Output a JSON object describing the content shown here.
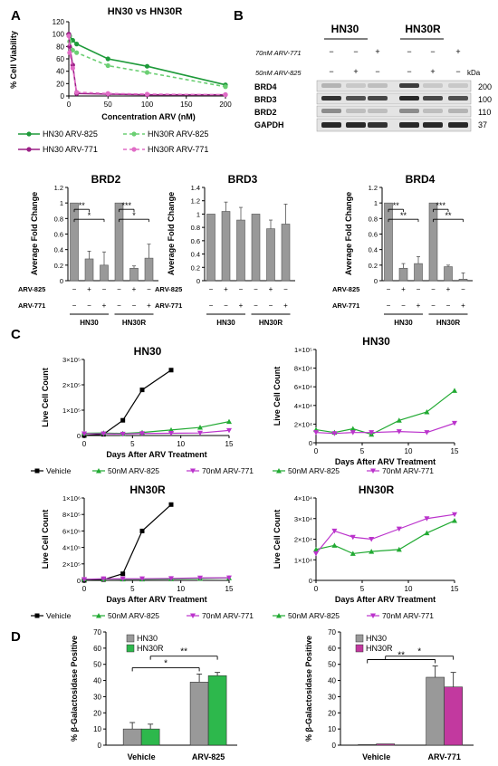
{
  "panels": {
    "A": "A",
    "B": "B",
    "C": "C",
    "D": "D"
  },
  "colors": {
    "hn30_green": "#1e9a3a",
    "hn30r_green": "#6bcf73",
    "hn30_purple": "#9b1f86",
    "hn30r_pink": "#e06cc6",
    "vehicle": "#000000",
    "arv825": "#22aa33",
    "arv771": "#bb33cc",
    "bar_gray": "#999999",
    "bar_green": "#2db84c",
    "bar_magenta": "#c2399f"
  },
  "blot": {
    "hn30": "HN30",
    "hn30r": "HN30R",
    "row771": "70nM ARV-771",
    "row825": "50nM ARV-825",
    "kda": "kDa",
    "signs771": [
      "−",
      "−",
      "+",
      "−",
      "−",
      "+"
    ],
    "signs825": [
      "−",
      "+",
      "−",
      "−",
      "+",
      "−"
    ],
    "bands": [
      {
        "name": "BRD4",
        "kda": "200"
      },
      {
        "name": "BRD3",
        "kda": "100"
      },
      {
        "name": "BRD2",
        "kda": "110"
      },
      {
        "name": "GAPDH",
        "kda": "37"
      }
    ]
  },
  "chart_data": [
    {
      "id": "A-viability",
      "type": "line",
      "title": "HN30 vs HN30R",
      "xlabel": "Concentration ARV (nM)",
      "ylabel": "% Cell Viability",
      "xlim": [
        0,
        200
      ],
      "ylim": [
        0,
        120
      ],
      "xticks": [
        0,
        50,
        100,
        150,
        200
      ],
      "yticks": [
        0,
        20,
        40,
        60,
        80,
        100,
        120
      ],
      "series": [
        {
          "name": "HN30 ARV-825",
          "x": [
            0,
            1,
            5,
            10,
            50,
            100,
            200
          ],
          "y": [
            100,
            97,
            90,
            84,
            60,
            48,
            18
          ]
        },
        {
          "name": "HN30R ARV-825",
          "x": [
            0,
            1,
            5,
            10,
            50,
            100,
            200
          ],
          "y": [
            99,
            88,
            74,
            70,
            49,
            38,
            15
          ]
        },
        {
          "name": "HN30 ARV-771",
          "x": [
            0,
            1,
            5,
            10,
            50,
            100,
            200
          ],
          "y": [
            100,
            80,
            50,
            4,
            3,
            2,
            2
          ]
        },
        {
          "name": "HN30R ARV-771",
          "x": [
            0,
            1,
            5,
            10,
            50,
            100,
            200
          ],
          "y": [
            97,
            70,
            45,
            6,
            4,
            3,
            2
          ]
        }
      ]
    },
    {
      "id": "A-brd2",
      "type": "bar",
      "title": "BRD2",
      "ylabel": "Average Fold Change",
      "ylim": [
        0,
        1.2
      ],
      "yticks": [
        "0",
        "0.2",
        "0.4",
        "0.6",
        "0.8",
        "1",
        "1.2"
      ],
      "values": [
        1,
        0.28,
        0.2,
        1,
        0.16,
        0.29
      ],
      "errors": [
        0,
        0.1,
        0.17,
        0,
        0.03,
        0.18
      ],
      "treat825": [
        "−",
        "+",
        "−",
        "−",
        "+",
        "−"
      ],
      "treat771": [
        "−",
        "−",
        "+",
        "−",
        "−",
        "+"
      ],
      "groups": [
        "HN30",
        "HN30R"
      ],
      "sig": [
        {
          "a": 0,
          "b": 1,
          "label": "**",
          "lvl": 0
        },
        {
          "a": 0,
          "b": 2,
          "label": "*",
          "lvl": 1
        },
        {
          "a": 3,
          "b": 4,
          "label": "***",
          "lvl": 0
        },
        {
          "a": 3,
          "b": 5,
          "label": "*",
          "lvl": 1
        }
      ]
    },
    {
      "id": "A-brd3",
      "type": "bar",
      "title": "BRD3",
      "ylabel": "Average Fold Change",
      "ylim": [
        0,
        1.4
      ],
      "yticks": [
        "0",
        "0.2",
        "0.4",
        "0.6",
        "0.8",
        "1",
        "1.2",
        "1.4"
      ],
      "values": [
        1,
        1.04,
        0.91,
        1,
        0.78,
        0.85
      ],
      "errors": [
        0,
        0.14,
        0.19,
        0,
        0.13,
        0.3
      ],
      "treat825": [
        "−",
        "+",
        "−",
        "−",
        "+",
        "−"
      ],
      "treat771": [
        "−",
        "−",
        "+",
        "−",
        "−",
        "+"
      ],
      "groups": [
        "HN30",
        "HN30R"
      ],
      "sig": []
    },
    {
      "id": "A-brd4",
      "type": "bar",
      "title": "BRD4",
      "ylabel": "Average Fold Change",
      "ylim": [
        0,
        1.2
      ],
      "yticks": [
        "0",
        "0.2",
        "0.4",
        "0.6",
        "0.8",
        "1",
        "1.2"
      ],
      "values": [
        1,
        0.16,
        0.22,
        1,
        0.18,
        0.02
      ],
      "errors": [
        0,
        0.06,
        0.09,
        0,
        0.02,
        0.08
      ],
      "treat825": [
        "−",
        "+",
        "−",
        "−",
        "+",
        "−"
      ],
      "treat771": [
        "−",
        "−",
        "+",
        "−",
        "−",
        "+"
      ],
      "groups": [
        "HN30",
        "HN30R"
      ],
      "sig": [
        {
          "a": 0,
          "b": 1,
          "label": "**",
          "lvl": 0
        },
        {
          "a": 0,
          "b": 2,
          "label": "**",
          "lvl": 1
        },
        {
          "a": 3,
          "b": 4,
          "label": "***",
          "lvl": 0
        },
        {
          "a": 3,
          "b": 5,
          "label": "**",
          "lvl": 1
        }
      ]
    },
    {
      "id": "C-hn30-all",
      "type": "line",
      "title": "HN30",
      "xlabel": "Days After ARV Treatment",
      "ylabel": "Live Cell Count",
      "xlim": [
        0,
        15
      ],
      "ylim": [
        0,
        300000
      ],
      "xticks": [
        "0",
        "5",
        "10",
        "15"
      ],
      "yticks": [
        "0",
        "1×10⁵",
        "2×10⁵",
        "3×10⁵"
      ],
      "series": [
        {
          "name": "Vehicle",
          "x": [
            0,
            2,
            4,
            6,
            9
          ],
          "y": [
            0,
            5000,
            60000,
            180000,
            258000
          ]
        },
        {
          "name": "50nM ARV-825",
          "x": [
            0,
            2,
            4,
            6,
            9,
            12,
            15
          ],
          "y": [
            9000,
            10000,
            8000,
            12000,
            22000,
            32000,
            55000
          ]
        },
        {
          "name": "70nM ARV-771",
          "x": [
            0,
            2,
            4,
            6,
            9,
            12,
            15
          ],
          "y": [
            7000,
            7000,
            6000,
            8000,
            9000,
            10000,
            20000
          ]
        }
      ]
    },
    {
      "id": "C-hn30-arv",
      "type": "line",
      "title": "HN30",
      "xlabel": "Days After ARV Treatment",
      "ylabel": "Live Cell Count",
      "xlim": [
        0,
        15
      ],
      "ylim": [
        0,
        100000
      ],
      "xticks": [
        "0",
        "5",
        "10",
        "15"
      ],
      "yticks": [
        "0",
        "2×10⁴",
        "4×10⁴",
        "6×10⁴",
        "8×10⁴",
        "1×10⁵"
      ],
      "series": [
        {
          "name": "50nM ARV-825",
          "x": [
            0,
            2,
            4,
            6,
            9,
            12,
            15
          ],
          "y": [
            14000,
            11000,
            15000,
            9000,
            24000,
            33000,
            56000
          ]
        },
        {
          "name": "70nM ARV-771",
          "x": [
            0,
            2,
            4,
            6,
            9,
            12,
            15
          ],
          "y": [
            11000,
            10000,
            11000,
            11000,
            12000,
            11000,
            21000
          ]
        }
      ]
    },
    {
      "id": "C-hn30r-all",
      "type": "line",
      "title": "HN30R",
      "xlabel": "Days After ARV Treatment",
      "ylabel": "Live Cell Count",
      "xlim": [
        0,
        15
      ],
      "ylim": [
        0,
        1000000
      ],
      "xticks": [
        "0",
        "5",
        "10",
        "15"
      ],
      "yticks": [
        "0",
        "2×10⁵",
        "4×10⁵",
        "6×10⁵",
        "8×10⁵",
        "1×10⁶"
      ],
      "series": [
        {
          "name": "Vehicle",
          "x": [
            0,
            2,
            4,
            6,
            9
          ],
          "y": [
            0,
            10000,
            80000,
            600000,
            920000
          ]
        },
        {
          "name": "50nM ARV-825",
          "x": [
            0,
            2,
            4,
            6,
            9,
            12,
            15
          ],
          "y": [
            15000,
            17000,
            15000,
            15000,
            18000,
            23000,
            30000
          ]
        },
        {
          "name": "70nM ARV-771",
          "x": [
            0,
            2,
            4,
            6,
            9,
            12,
            15
          ],
          "y": [
            13000,
            20000,
            19000,
            20000,
            24000,
            30000,
            32000
          ]
        }
      ]
    },
    {
      "id": "C-hn30r-arv",
      "type": "line",
      "title": "HN30R",
      "xlabel": "Days After ARV Treatment",
      "ylabel": "Live Cell Count",
      "xlim": [
        0,
        15
      ],
      "ylim": [
        0,
        40000
      ],
      "xticks": [
        "0",
        "5",
        "10",
        "15"
      ],
      "yticks": [
        "0",
        "1×10⁴",
        "2×10⁴",
        "3×10⁴",
        "4×10⁴"
      ],
      "series": [
        {
          "name": "50nM ARV-825",
          "x": [
            0,
            2,
            4,
            6,
            9,
            12,
            15
          ],
          "y": [
            15000,
            17000,
            13000,
            14000,
            15000,
            23000,
            29000
          ]
        },
        {
          "name": "70nM ARV-771",
          "x": [
            0,
            2,
            4,
            6,
            9,
            12,
            15
          ],
          "y": [
            13000,
            24000,
            21000,
            20000,
            25000,
            30000,
            32000
          ]
        }
      ]
    },
    {
      "id": "D-arv825",
      "type": "bar",
      "ylabel": "% β-Galactosidase Positive",
      "ylim": [
        0,
        70
      ],
      "yticks": [
        "0",
        "10",
        "20",
        "30",
        "40",
        "50",
        "60",
        "70"
      ],
      "categories": [
        "Vehicle",
        "ARV-825"
      ],
      "series": [
        {
          "name": "HN30",
          "values": [
            10,
            39
          ],
          "errors": [
            4,
            5
          ]
        },
        {
          "name": "HN30R",
          "values": [
            10,
            43
          ],
          "errors": [
            3,
            2
          ]
        }
      ],
      "sig": [
        {
          "label": "*",
          "from": "HN30 Vehicle",
          "to": "HN30 ARV-825"
        },
        {
          "label": "**",
          "from": "HN30R Vehicle",
          "to": "HN30R ARV-825"
        }
      ]
    },
    {
      "id": "D-arv771",
      "type": "bar",
      "ylabel": "% β-Galactosidase Positive",
      "ylim": [
        0,
        70
      ],
      "yticks": [
        "0",
        "10",
        "20",
        "30",
        "40",
        "50",
        "60",
        "70"
      ],
      "categories": [
        "Vehicle",
        "ARV-771"
      ],
      "series": [
        {
          "name": "HN30",
          "values": [
            0.4,
            42
          ],
          "errors": [
            0,
            7
          ]
        },
        {
          "name": "HN30R",
          "values": [
            0.8,
            36
          ],
          "errors": [
            0,
            9
          ]
        }
      ],
      "sig": [
        {
          "label": "**",
          "from": "HN30 Vehicle",
          "to": "HN30 ARV-771"
        },
        {
          "label": "*",
          "from": "HN30R Vehicle",
          "to": "HN30R ARV-771"
        }
      ]
    }
  ]
}
